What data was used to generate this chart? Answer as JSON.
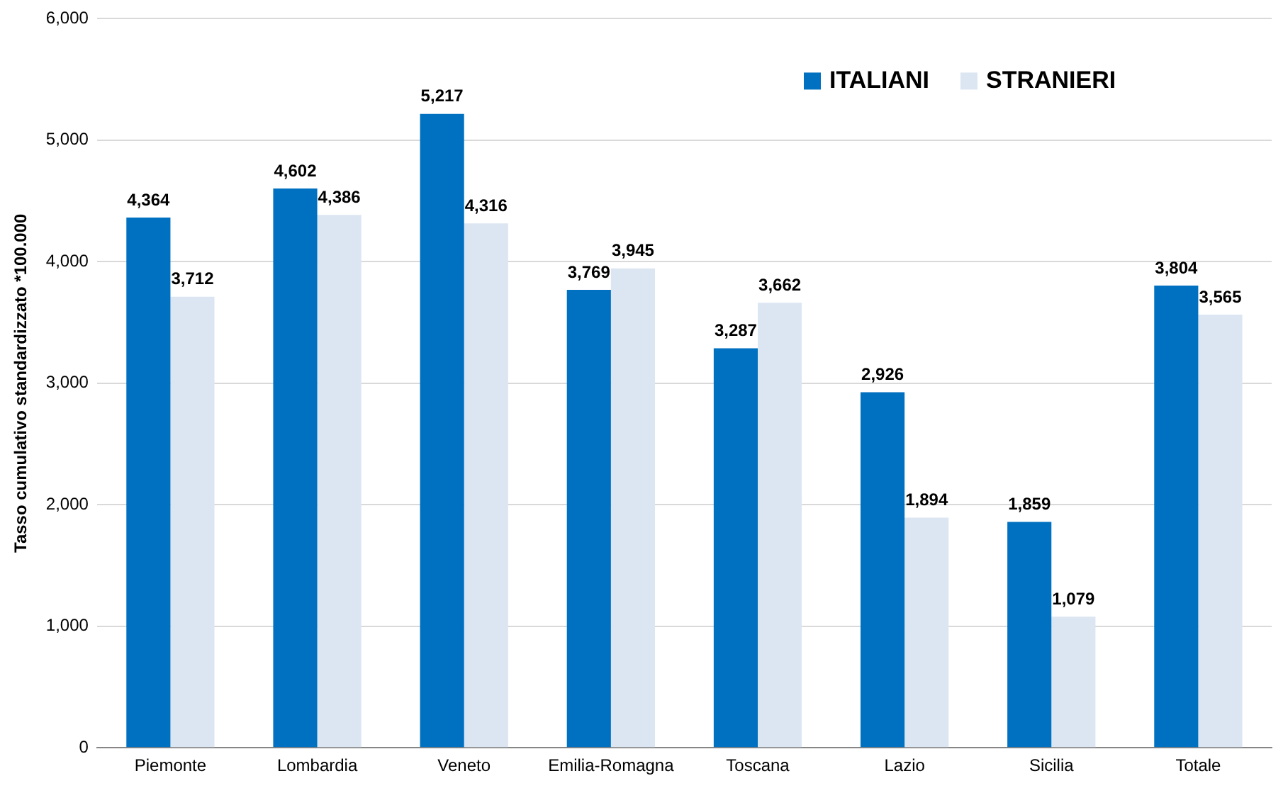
{
  "chart_data": {
    "type": "bar",
    "ylabel": "Tasso cumulativo standardizzato *100.000",
    "categories": [
      "Piemonte",
      "Lombardia",
      "Veneto",
      "Emilia-Romagna",
      "Toscana",
      "Lazio",
      "Sicilia",
      "Totale"
    ],
    "series": [
      {
        "name": "ITALIANI",
        "color": "#0070c0",
        "values": [
          4364,
          4602,
          5217,
          3769,
          3287,
          2926,
          1859,
          3804
        ],
        "value_labels": [
          "4,364",
          "4,602",
          "5,217",
          "3,769",
          "3,287",
          "2,926",
          "1,859",
          "3,804"
        ]
      },
      {
        "name": "STRANIERI",
        "color": "#dce6f2",
        "values": [
          3712,
          4386,
          4316,
          3945,
          3662,
          1894,
          1079,
          3565
        ],
        "value_labels": [
          "3,712",
          "4,386",
          "4,316",
          "3,945",
          "3,662",
          "1,894",
          "1,079",
          "3,565"
        ]
      }
    ],
    "ylim": [
      0,
      6000
    ],
    "yticks": [
      {
        "value": 0,
        "label": "0"
      },
      {
        "value": 1000,
        "label": "1,000"
      },
      {
        "value": 2000,
        "label": "2,000"
      },
      {
        "value": 3000,
        "label": "3,000"
      },
      {
        "value": 4000,
        "label": "4,000"
      },
      {
        "value": 5000,
        "label": "5,000"
      },
      {
        "value": 6000,
        "label": "6,000"
      }
    ],
    "grid": "y",
    "legend": "top right"
  }
}
